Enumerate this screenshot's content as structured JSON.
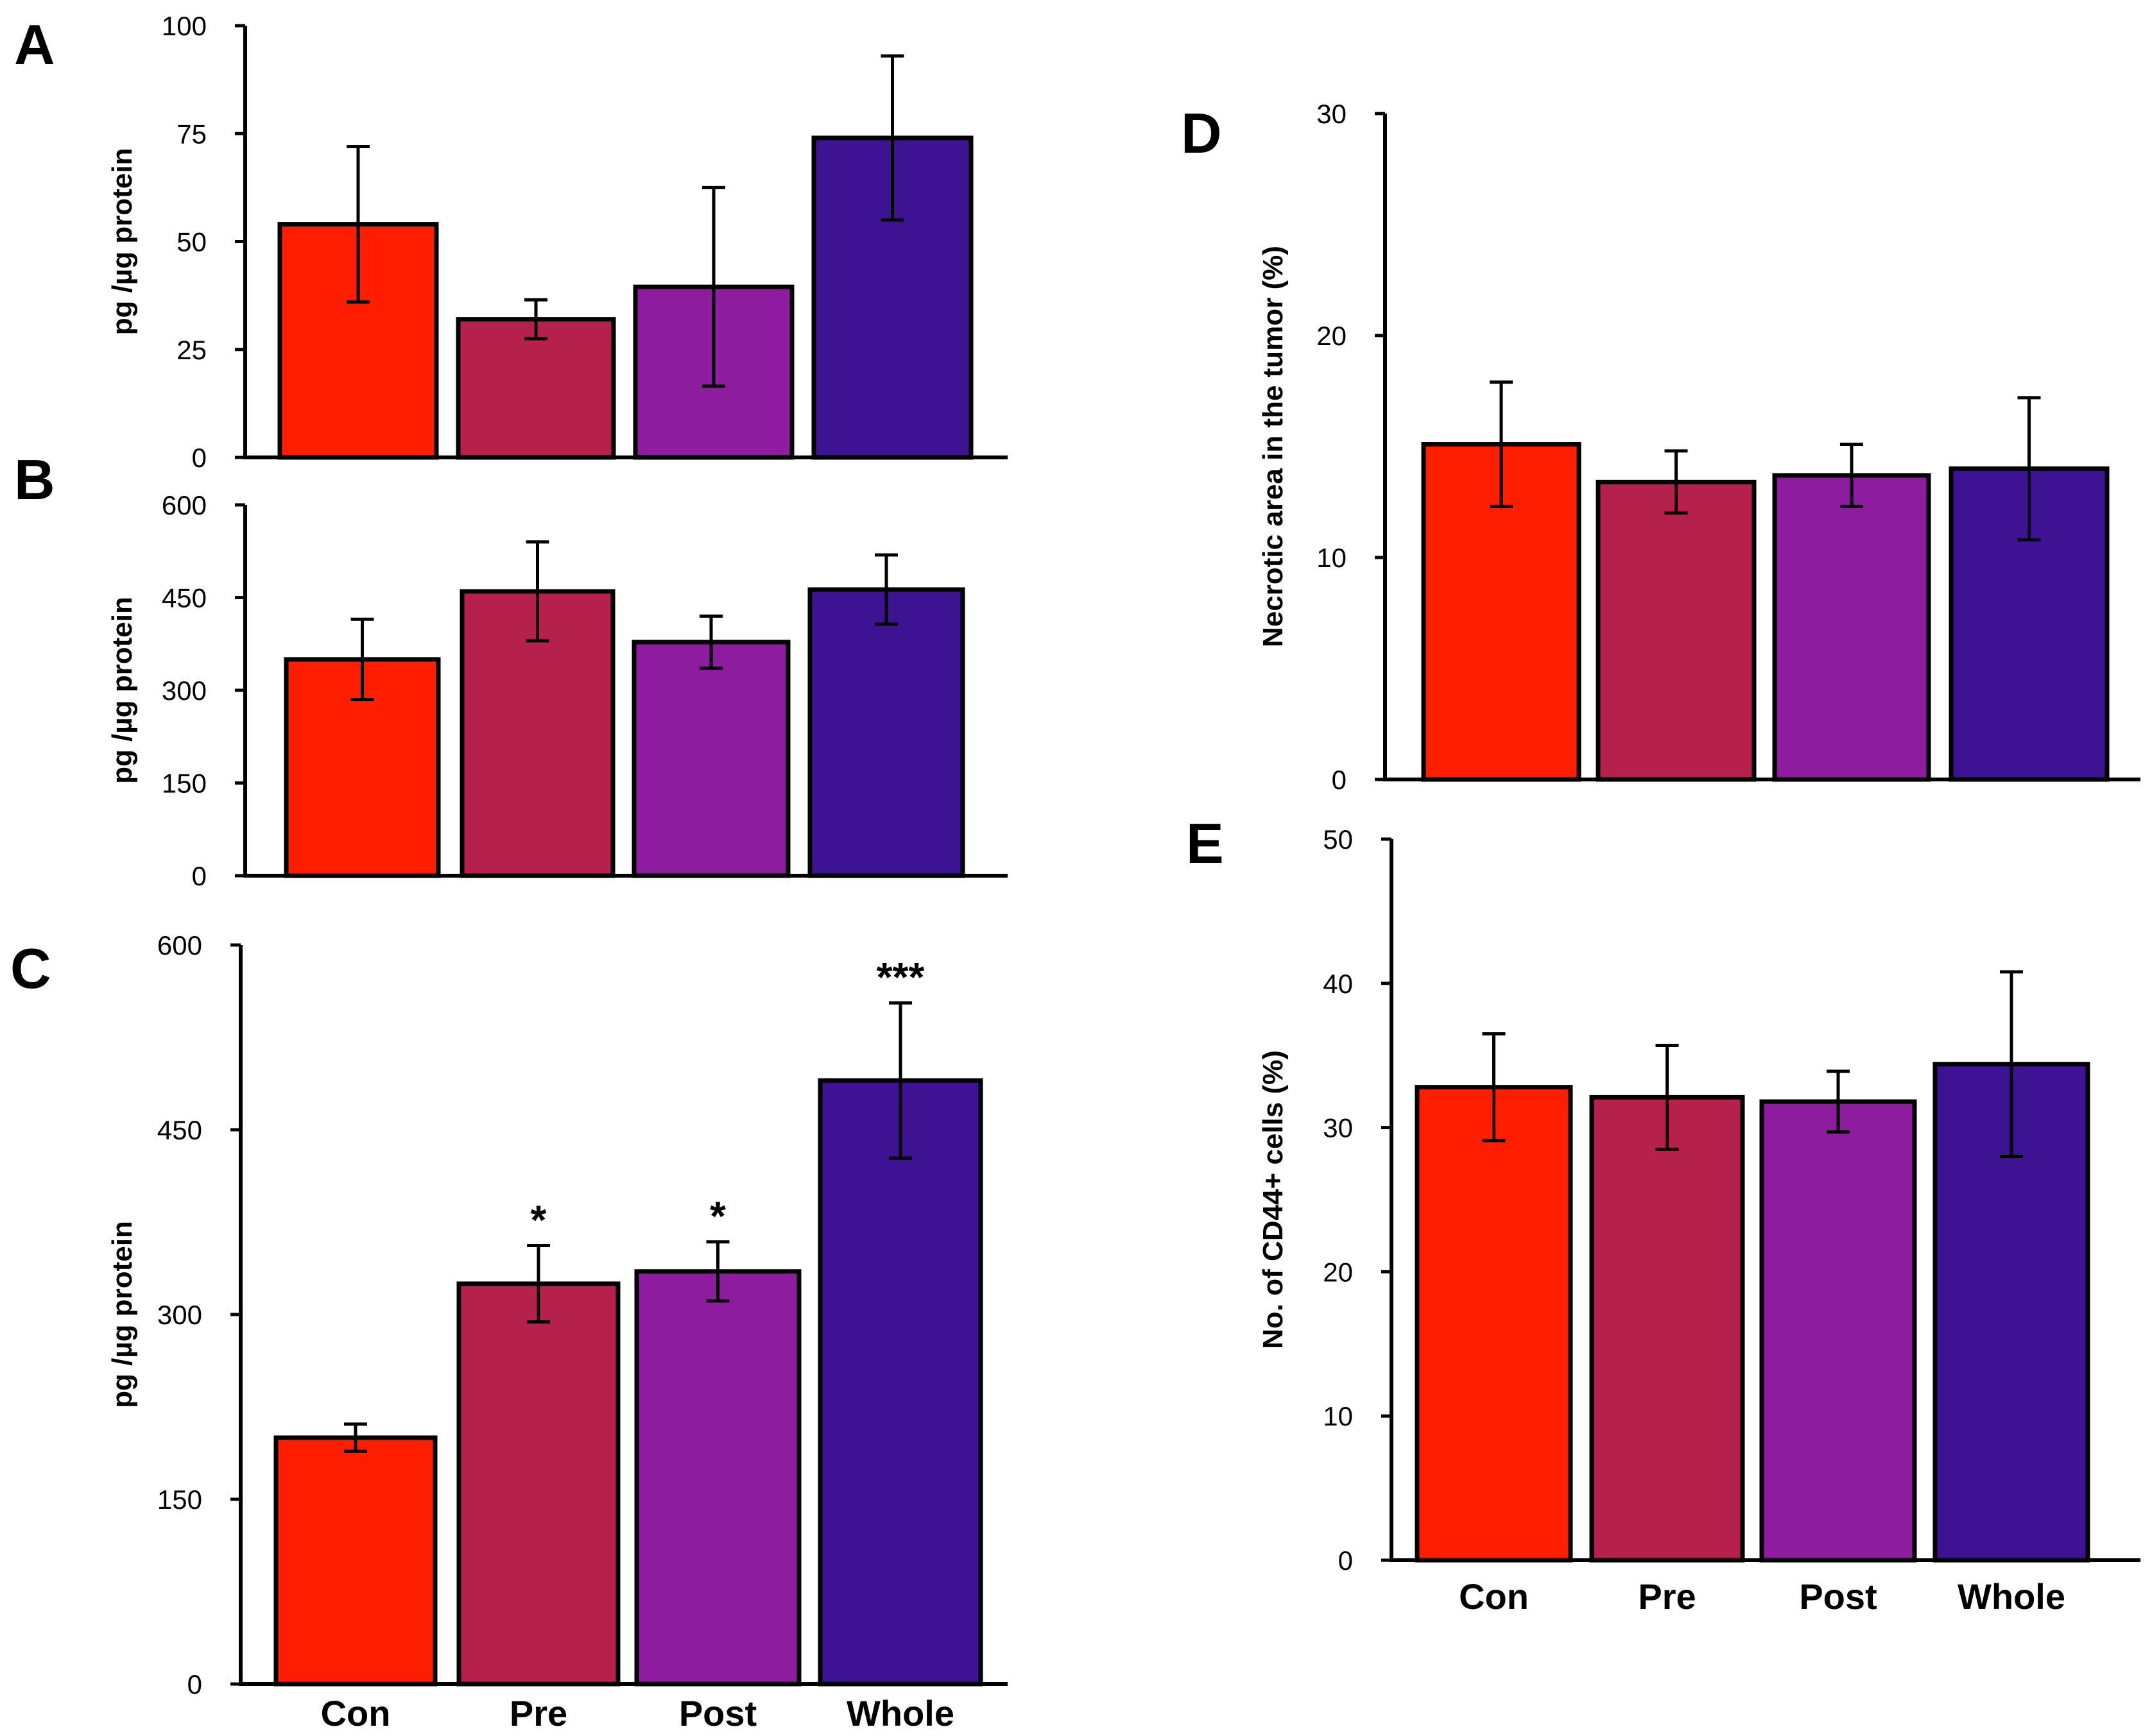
{
  "figure": "Five-panel bar chart figure",
  "chart_data": [
    {
      "panel": "A",
      "type": "bar",
      "categories": [
        "Con",
        "Pre",
        "Post",
        "Whole"
      ],
      "values": [
        54,
        32,
        39.5,
        74
      ],
      "errors": [
        18,
        4.5,
        23,
        19
      ],
      "significance": [
        "",
        "",
        "",
        ""
      ],
      "colors": [
        "#ff1e00",
        "#b5204d",
        "#8e1c9e",
        "#3d1293"
      ],
      "ylabel": "pg /µg protein",
      "ylim": [
        0,
        100
      ],
      "yticks": [
        0,
        25,
        50,
        75,
        100
      ],
      "show_category_labels": false
    },
    {
      "panel": "B",
      "type": "bar",
      "categories": [
        "Con",
        "Pre",
        "Post",
        "Whole"
      ],
      "values": [
        350,
        460,
        378,
        463
      ],
      "errors": [
        65,
        80,
        42,
        56
      ],
      "significance": [
        "",
        "",
        "",
        ""
      ],
      "colors": [
        "#ff1e00",
        "#b5204d",
        "#8e1c9e",
        "#3d1293"
      ],
      "ylabel": "pg /µg protein",
      "ylim": [
        0,
        600
      ],
      "yticks": [
        0,
        150,
        300,
        450,
        600
      ],
      "show_category_labels": false
    },
    {
      "panel": "C",
      "type": "bar",
      "categories": [
        "Con",
        "Pre",
        "Post",
        "Whole"
      ],
      "values": [
        200,
        325,
        335,
        490
      ],
      "errors": [
        11,
        31,
        24,
        63
      ],
      "significance": [
        "",
        "*",
        "*",
        "***"
      ],
      "colors": [
        "#ff1e00",
        "#b5204d",
        "#8e1c9e",
        "#3d1293"
      ],
      "ylabel": "pg /µg protein",
      "ylim": [
        0,
        600
      ],
      "yticks": [
        0,
        150,
        300,
        450,
        600
      ],
      "show_category_labels": true
    },
    {
      "panel": "D",
      "type": "bar",
      "categories": [
        "Con",
        "Pre",
        "Post",
        "Whole"
      ],
      "values": [
        15.1,
        13.4,
        13.7,
        14.0
      ],
      "errors": [
        2.8,
        1.4,
        1.4,
        3.2
      ],
      "significance": [
        "",
        "",
        "",
        ""
      ],
      "colors": [
        "#ff1e00",
        "#b5204d",
        "#8e1c9e",
        "#3d1293"
      ],
      "ylabel": "Necrotic area in the tumor (%)",
      "ylim": [
        0,
        30
      ],
      "yticks": [
        0,
        10,
        20,
        30
      ],
      "show_category_labels": false
    },
    {
      "panel": "E",
      "type": "bar",
      "categories": [
        "Con",
        "Pre",
        "Post",
        "Whole"
      ],
      "values": [
        32.8,
        32.1,
        31.8,
        34.4
      ],
      "errors": [
        3.7,
        3.6,
        2.1,
        6.4
      ],
      "significance": [
        "",
        "",
        "",
        ""
      ],
      "colors": [
        "#ff1e00",
        "#b5204d",
        "#8e1c9e",
        "#3d1293"
      ],
      "ylabel": "No. of CD44+ cells (%)",
      "ylim": [
        0,
        50
      ],
      "yticks": [
        0,
        10,
        20,
        30,
        40,
        50
      ],
      "show_category_labels": true
    }
  ]
}
